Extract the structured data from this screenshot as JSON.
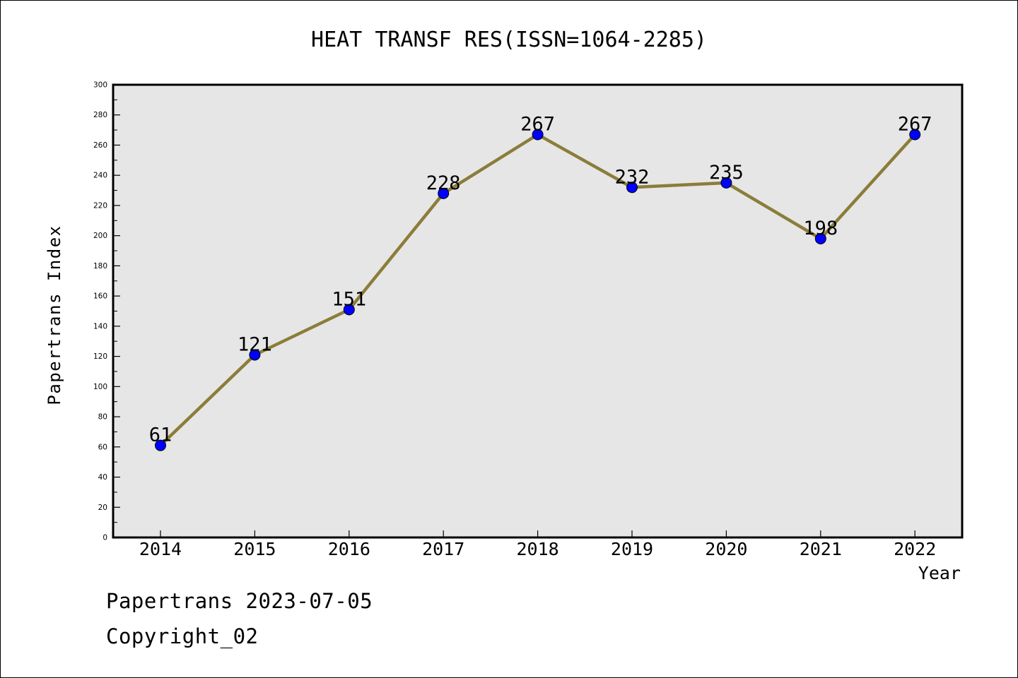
{
  "chart_data": {
    "type": "line",
    "title": "HEAT TRANSF RES(ISSN=1064-2285)",
    "xlabel": "Year",
    "ylabel": "Papertrans Index",
    "categories": [
      "2014",
      "2015",
      "2016",
      "2017",
      "2018",
      "2019",
      "2020",
      "2021",
      "2022"
    ],
    "series": [
      {
        "values": [
          61,
          121,
          151,
          228,
          267,
          232,
          235,
          198,
          267
        ]
      }
    ],
    "data_labels": [
      "61",
      "121",
      "151",
      "228",
      "267",
      "232",
      "235",
      "198",
      "267"
    ],
    "ylim": [
      0,
      300
    ],
    "y_ticks": [
      0,
      20,
      40,
      60,
      80,
      100,
      120,
      140,
      160,
      180,
      200,
      220,
      240,
      260,
      280,
      300
    ],
    "grid": false,
    "legend": "none",
    "colors": {
      "line": "#8b7d3a",
      "marker": "#0000ff",
      "plot_background": "#e6e6e6"
    }
  },
  "footer": {
    "date_line": "Papertrans 2023-07-05",
    "copyright_line": "Copyright_02"
  }
}
